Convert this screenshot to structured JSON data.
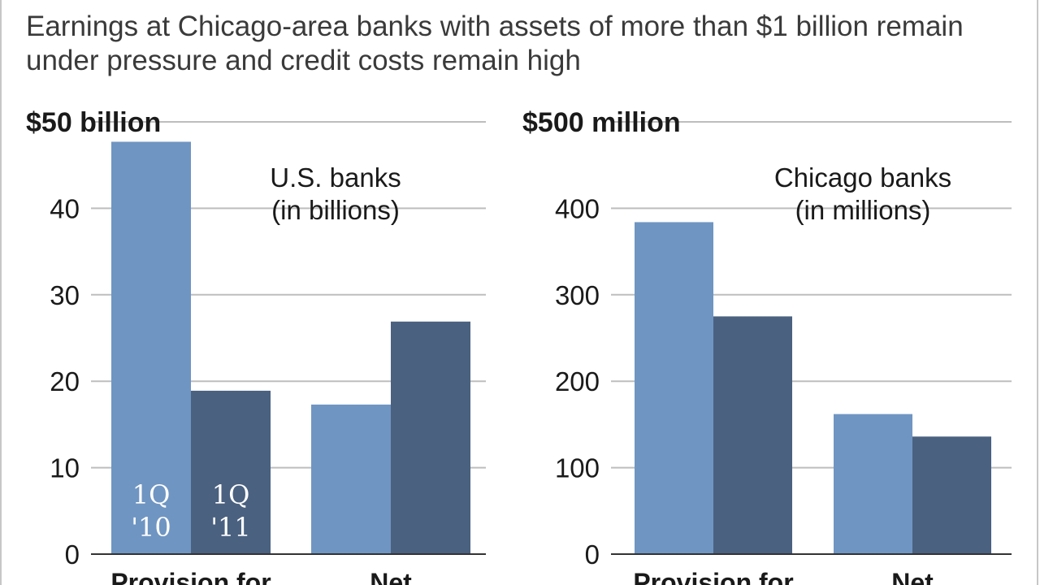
{
  "headline": "Earnings at Chicago-area banks with assets of more than $1 billion remain under pressure and credit costs remain high",
  "colors": {
    "q1_10": "#6f95c2",
    "q1_11": "#4a6180",
    "grid": "#bdbdbd"
  },
  "chart_data": [
    {
      "type": "bar",
      "title": "U.S. banks (in billions)",
      "title_lines": [
        "U.S. banks",
        "(in billions)"
      ],
      "unit_label": "$50 billion",
      "ylim": [
        0,
        50
      ],
      "yticks": [
        0,
        10,
        20,
        30,
        40
      ],
      "ytick_labels": [
        "0",
        "10",
        "20",
        "30",
        "40"
      ],
      "grid": true,
      "categories": [
        "Provision for",
        "Net"
      ],
      "series": [
        {
          "name": "1Q '10",
          "label_lines": [
            "1Q",
            "'10"
          ],
          "values": [
            47.7,
            17.3
          ]
        },
        {
          "name": "1Q '11",
          "label_lines": [
            "1Q",
            "'11"
          ],
          "values": [
            18.9,
            26.9
          ]
        }
      ]
    },
    {
      "type": "bar",
      "title": "Chicago banks (in millions)",
      "title_lines": [
        "Chicago banks",
        "(in millions)"
      ],
      "unit_label": "$500 million",
      "ylim": [
        0,
        500
      ],
      "yticks": [
        0,
        100,
        200,
        300,
        400
      ],
      "ytick_labels": [
        "0",
        "100",
        "200",
        "300",
        "400"
      ],
      "grid": true,
      "categories": [
        "Provision for",
        "Net"
      ],
      "series": [
        {
          "name": "1Q '10",
          "values": [
            384,
            162
          ]
        },
        {
          "name": "1Q '11",
          "values": [
            275,
            136
          ]
        }
      ]
    }
  ]
}
